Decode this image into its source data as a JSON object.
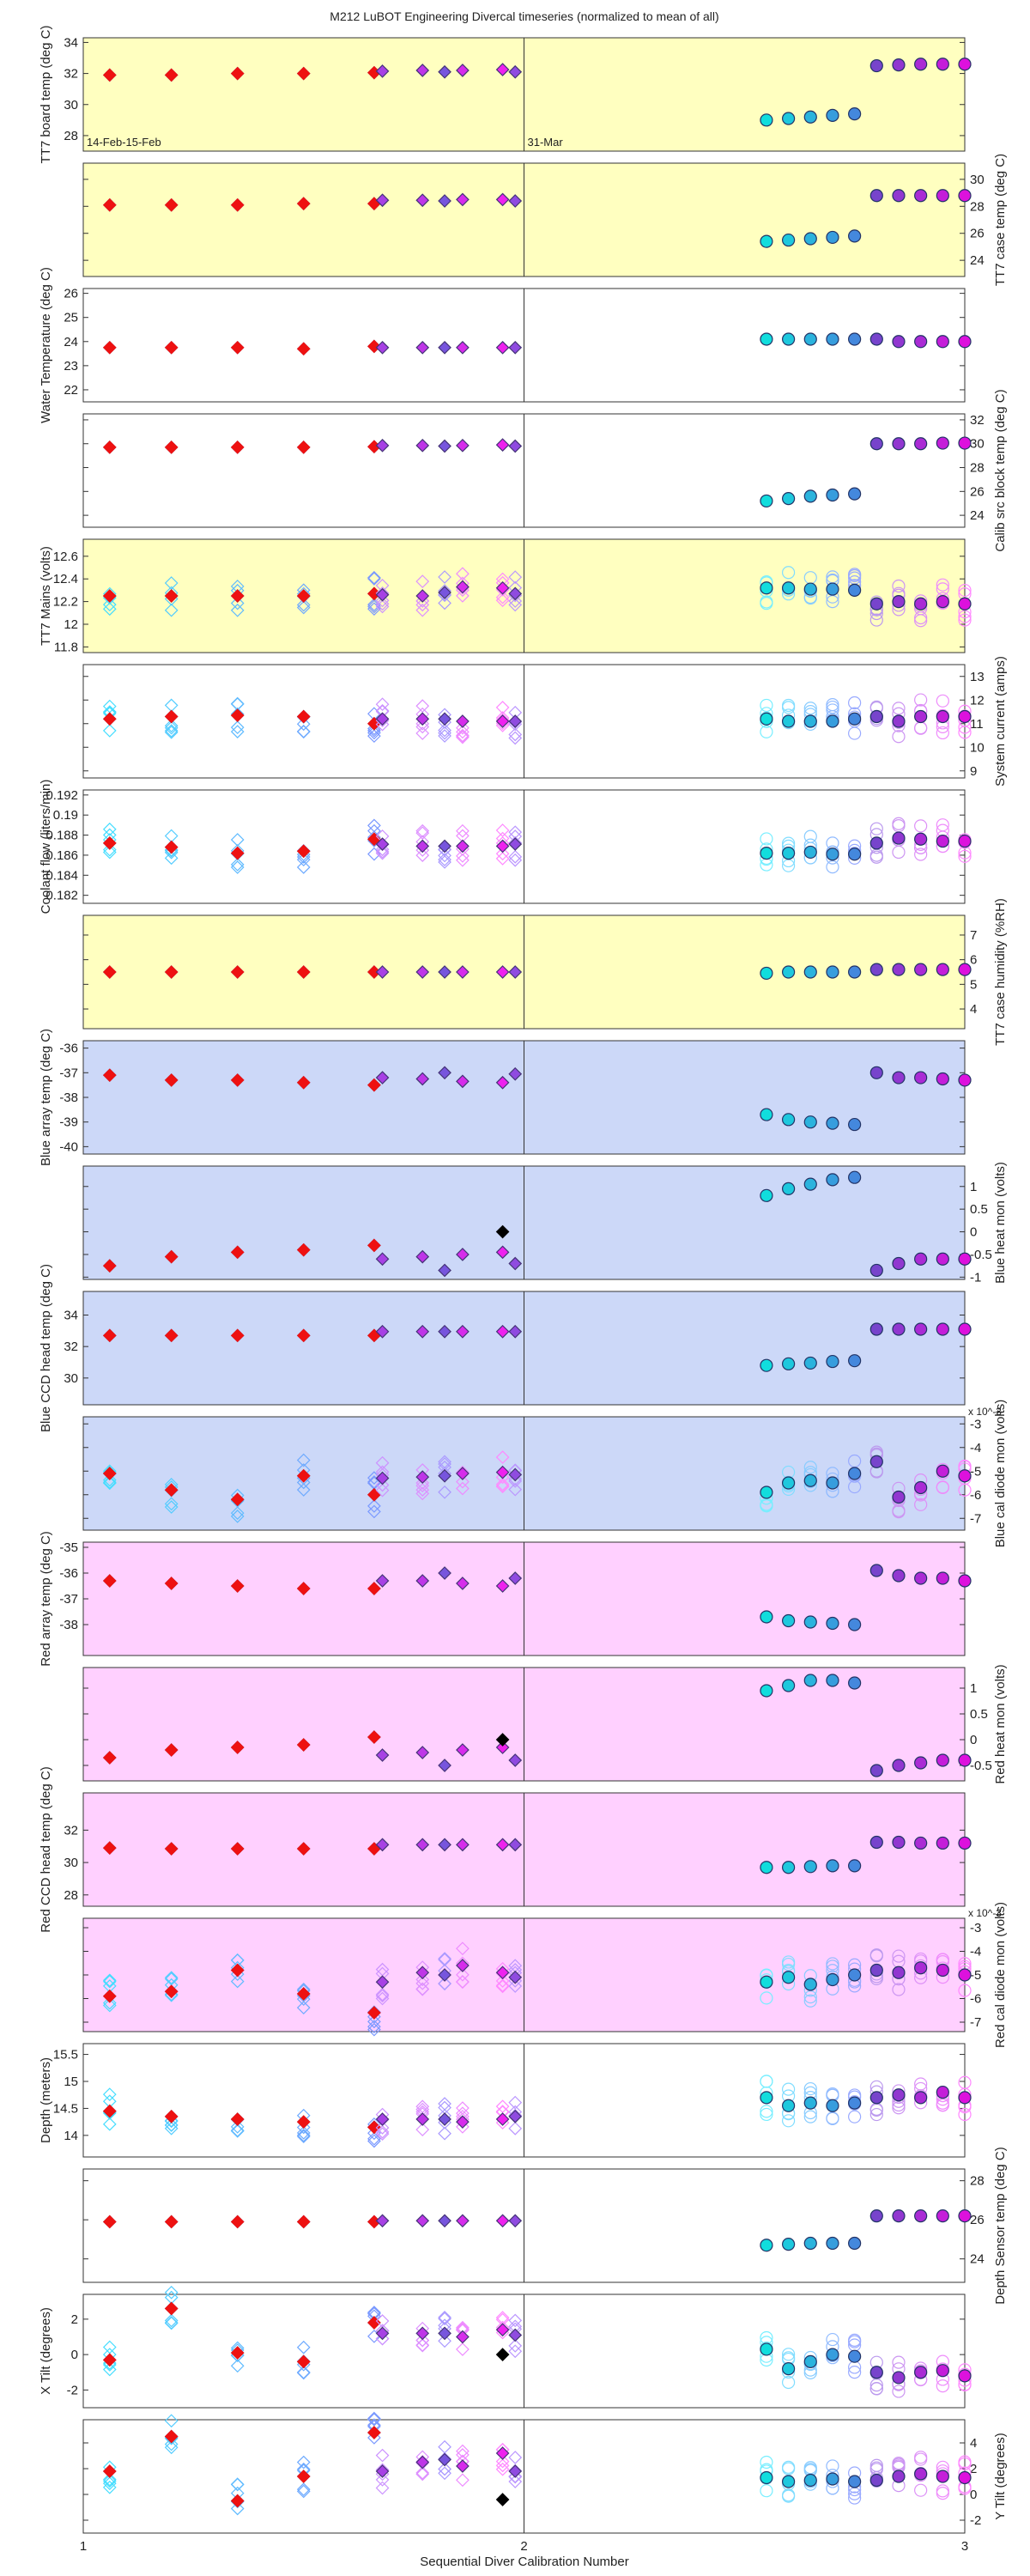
{
  "chart_data": {
    "type": "scatter",
    "title": "M212  LuBOT Engineering Divercal timeseries (normalized to mean of all)",
    "xlabel": "Sequential Diver Calibration Number",
    "xlim": [
      1,
      3
    ],
    "xticks": [
      1,
      2,
      3
    ],
    "annotations": [
      {
        "text": "14-Feb-15-Feb",
        "x": 1.0,
        "panel": 0
      },
      {
        "text": "31-Mar",
        "x": 2.0,
        "panel": 0
      }
    ],
    "x_first_group": [
      1.06,
      1.2,
      1.35,
      1.5,
      1.66,
      1.82,
      1.98,
      2.12,
      2.27,
      2.42,
      2.57
    ],
    "x_second_group": [
      3.47,
      3.58,
      3.69,
      3.8,
      3.91,
      4.02,
      4.13,
      4.24,
      4.35,
      4.46
    ],
    "panels": [
      {
        "ylabel": "TT7 board temp (deg C)",
        "axis_side": "left",
        "ylim": [
          27,
          34.3
        ],
        "yticks": [
          28,
          30,
          32,
          34
        ],
        "bg": "#ffffc0",
        "red": [
          31.9,
          31.9,
          32.0,
          32.0,
          32.05
        ],
        "first_purple": [
          32.1,
          32.1,
          32.15,
          32.2,
          32.2,
          32.25
        ],
        "second_group": [
          29.0,
          29.1,
          29.2,
          29.3,
          29.4,
          32.5,
          32.55,
          32.6,
          32.6,
          32.6
        ]
      },
      {
        "ylabel": "TT7 case temp (deg C)",
        "axis_side": "right",
        "ylim": [
          22.8,
          31.2
        ],
        "yticks": [
          24,
          26,
          28,
          30
        ],
        "bg": "#ffffc0",
        "red": [
          28.1,
          28.1,
          28.1,
          28.2,
          28.2
        ],
        "first_purple": [
          28.4,
          28.4,
          28.45,
          28.45,
          28.5,
          28.5
        ],
        "second_group": [
          25.4,
          25.5,
          25.6,
          25.7,
          25.8,
          28.8,
          28.8,
          28.8,
          28.8,
          28.8
        ]
      },
      {
        "ylabel": "Water Temperature (deg C)",
        "axis_side": "left",
        "ylim": [
          21.5,
          26.2
        ],
        "yticks": [
          22,
          23,
          24,
          25,
          26
        ],
        "bg": "#ffffff",
        "red": [
          23.75,
          23.75,
          23.75,
          23.7,
          23.8
        ],
        "first_purple": [
          23.75,
          23.75,
          23.75,
          23.75,
          23.75,
          23.75
        ],
        "second_group": [
          24.1,
          24.1,
          24.1,
          24.1,
          24.1,
          24.1,
          24.0,
          24.0,
          24.0,
          24.0
        ]
      },
      {
        "ylabel": "Calib src block temp (deg C)",
        "axis_side": "right",
        "ylim": [
          23,
          32.5
        ],
        "yticks": [
          24,
          26,
          28,
          30,
          32
        ],
        "bg": "#ffffff",
        "red": [
          29.7,
          29.7,
          29.7,
          29.7,
          29.75
        ],
        "first_purple": [
          29.8,
          29.8,
          29.85,
          29.85,
          29.85,
          29.9
        ],
        "second_group": [
          25.2,
          25.4,
          25.6,
          25.7,
          25.8,
          30.0,
          30.0,
          30.0,
          30.05,
          30.05
        ]
      },
      {
        "ylabel": "TT7 Mains (volts)",
        "axis_side": "left",
        "ylim": [
          11.75,
          12.75
        ],
        "yticks": [
          11.8,
          12,
          12.2,
          12.4,
          12.6
        ],
        "bg": "#ffffc0",
        "red": [
          12.25,
          12.25,
          12.25,
          12.25,
          12.27
        ],
        "first_purple": [
          12.28,
          12.27,
          12.26,
          12.25,
          12.33,
          12.32
        ],
        "second_group": [
          12.32,
          12.32,
          12.31,
          12.31,
          12.3,
          12.18,
          12.2,
          12.18,
          12.2,
          12.18
        ]
      },
      {
        "ylabel": "System current (amps)",
        "axis_side": "right",
        "ylim": [
          8.7,
          13.5
        ],
        "yticks": [
          9,
          10,
          11,
          12,
          13
        ],
        "bg": "#ffffff",
        "red": [
          11.2,
          11.3,
          11.35,
          11.3,
          11.0
        ],
        "first_purple": [
          11.2,
          11.1,
          11.2,
          11.2,
          11.1,
          11.1
        ],
        "second_group": [
          11.2,
          11.1,
          11.1,
          11.1,
          11.2,
          11.3,
          11.1,
          11.3,
          11.3,
          11.3
        ]
      },
      {
        "ylabel": "Coolant flow (liters/min)",
        "axis_side": "left",
        "ylim": [
          0.1812,
          0.1925
        ],
        "yticks": [
          0.182,
          0.184,
          0.186,
          0.188,
          0.19,
          0.192
        ],
        "bg": "#ffffff",
        "red": [
          0.1872,
          0.1868,
          0.1862,
          0.1864,
          0.1876
        ],
        "first_purple": [
          0.1869,
          0.1871,
          0.1871,
          0.1869,
          0.1869,
          0.1869
        ],
        "second_group": [
          0.1862,
          0.1862,
          0.1863,
          0.1861,
          0.1861,
          0.1872,
          0.1877,
          0.1876,
          0.1874,
          0.1874
        ]
      },
      {
        "ylabel": "TT7 case humidity (%RH)",
        "axis_side": "right",
        "ylim": [
          3.2,
          7.8
        ],
        "yticks": [
          4,
          5,
          6,
          7
        ],
        "bg": "#ffffc0",
        "red": [
          5.5,
          5.5,
          5.5,
          5.5,
          5.5
        ],
        "first_purple": [
          5.5,
          5.5,
          5.5,
          5.5,
          5.5,
          5.5
        ],
        "second_group": [
          5.45,
          5.5,
          5.5,
          5.5,
          5.5,
          5.6,
          5.6,
          5.6,
          5.6,
          5.6
        ]
      },
      {
        "ylabel": "Blue array temp (deg C)",
        "axis_side": "left",
        "ylim": [
          -40.3,
          -35.7
        ],
        "yticks": [
          -40,
          -39,
          -38,
          -37,
          -36
        ],
        "bg": "#ccd8f8",
        "red": [
          -37.1,
          -37.3,
          -37.3,
          -37.4,
          -37.5
        ],
        "first_purple": [
          -37.0,
          -37.05,
          -37.2,
          -37.25,
          -37.35,
          -37.4
        ],
        "second_group": [
          -38.7,
          -38.9,
          -39.0,
          -39.05,
          -39.1,
          -37.0,
          -37.2,
          -37.2,
          -37.25,
          -37.3
        ]
      },
      {
        "ylabel": "Blue heat mon (volts)",
        "axis_side": "right",
        "ylim": [
          -1.05,
          1.45
        ],
        "yticks": [
          -1,
          -0.5,
          0,
          0.5,
          1
        ],
        "bg": "#ccd8f8",
        "red": [
          -0.75,
          -0.55,
          -0.45,
          -0.4,
          -0.3
        ],
        "first_purple": [
          -0.85,
          -0.7,
          -0.6,
          -0.55,
          -0.5,
          -0.45
        ],
        "black": [
          {
            "i": 5,
            "y": 0.0
          }
        ],
        "second_group": [
          0.8,
          0.95,
          1.05,
          1.15,
          1.2,
          -0.85,
          -0.7,
          -0.6,
          -0.6,
          -0.6
        ]
      },
      {
        "ylabel": "Blue CCD head temp (deg C)",
        "axis_side": "left",
        "ylim": [
          28.3,
          35.5
        ],
        "yticks": [
          30,
          32,
          34
        ],
        "bg": "#ccd8f8",
        "red": [
          32.7,
          32.7,
          32.7,
          32.7,
          32.7
        ],
        "first_purple": [
          32.95,
          32.95,
          32.95,
          32.95,
          32.95,
          32.95
        ],
        "second_group": [
          30.8,
          30.9,
          30.95,
          31.05,
          31.1,
          33.1,
          33.1,
          33.1,
          33.1,
          33.1
        ]
      },
      {
        "ylabel": "Blue cal diode mon (volts)",
        "axis_side": "right",
        "ylim": [
          -7.5,
          -2.7
        ],
        "yticks": [
          -7,
          -6,
          -5,
          -4,
          -3
        ],
        "exponent": "x 10^-3",
        "bg": "#ccd8f8",
        "red": [
          -5.1,
          -5.8,
          -6.2,
          -5.2,
          -6.0
        ],
        "first_purple": [
          -5.2,
          -5.15,
          -5.3,
          -5.25,
          -5.1,
          -5.05
        ],
        "second_group": [
          -5.9,
          -5.5,
          -5.4,
          -5.5,
          -5.1,
          -4.6,
          -6.1,
          -5.7,
          -5.0,
          -5.2
        ]
      },
      {
        "ylabel": "Red array temp (deg C)",
        "axis_side": "left",
        "ylim": [
          -39.2,
          -34.8
        ],
        "yticks": [
          -38,
          -37,
          -36,
          -35
        ],
        "bg": "#ffd0ff",
        "red": [
          -36.3,
          -36.4,
          -36.5,
          -36.6,
          -36.6
        ],
        "first_purple": [
          -36.0,
          -36.2,
          -36.3,
          -36.3,
          -36.4,
          -36.5
        ],
        "second_group": [
          -37.7,
          -37.85,
          -37.9,
          -37.95,
          -38.0,
          -35.9,
          -36.1,
          -36.2,
          -36.2,
          -36.3
        ]
      },
      {
        "ylabel": "Red heat mon (volts)",
        "axis_side": "right",
        "ylim": [
          -0.8,
          1.4
        ],
        "yticks": [
          -0.5,
          0,
          0.5,
          1
        ],
        "bg": "#ffd0ff",
        "red": [
          -0.35,
          -0.2,
          -0.15,
          -0.1,
          0.05
        ],
        "first_purple": [
          -0.5,
          -0.4,
          -0.3,
          -0.25,
          -0.2,
          -0.15
        ],
        "black": [
          {
            "i": 5,
            "y": 0.0
          }
        ],
        "second_group": [
          0.95,
          1.05,
          1.15,
          1.15,
          1.1,
          -0.6,
          -0.5,
          -0.45,
          -0.4,
          -0.4
        ]
      },
      {
        "ylabel": "Red CCD head temp (deg C)",
        "axis_side": "left",
        "ylim": [
          27.3,
          34.3
        ],
        "yticks": [
          28,
          30,
          32
        ],
        "bg": "#ffd0ff",
        "red": [
          30.9,
          30.85,
          30.85,
          30.85,
          30.85
        ],
        "first_purple": [
          31.1,
          31.1,
          31.1,
          31.1,
          31.1,
          31.1
        ],
        "second_group": [
          29.7,
          29.7,
          29.75,
          29.8,
          29.8,
          31.25,
          31.25,
          31.2,
          31.2,
          31.2
        ]
      },
      {
        "ylabel": "Red cal diode mon (volts)",
        "axis_side": "right",
        "ylim": [
          -7.4,
          -2.6
        ],
        "yticks": [
          -7,
          -6,
          -5,
          -4,
          -3
        ],
        "exponent": "x 10^-3",
        "bg": "#ffd0ff",
        "red": [
          -5.9,
          -5.7,
          -4.8,
          -5.8,
          -6.6
        ],
        "first_purple": [
          -5.0,
          -5.1,
          -5.3,
          -4.9,
          -4.6,
          -4.9
        ],
        "second_group": [
          -5.3,
          -5.1,
          -5.4,
          -5.2,
          -5.0,
          -4.8,
          -4.9,
          -4.7,
          -4.8,
          -5.0
        ]
      },
      {
        "ylabel": "Depth  (meters)",
        "axis_side": "left",
        "ylim": [
          13.6,
          15.7
        ],
        "yticks": [
          14,
          14.5,
          15,
          15.5
        ],
        "bg": "#ffffff",
        "red": [
          14.45,
          14.35,
          14.3,
          14.25,
          14.15
        ],
        "first_purple": [
          14.3,
          14.35,
          14.3,
          14.3,
          14.25,
          14.3
        ],
        "second_group": [
          14.7,
          14.55,
          14.6,
          14.55,
          14.6,
          14.7,
          14.75,
          14.7,
          14.8,
          14.7
        ]
      },
      {
        "ylabel": "Depth Sensor temp (deg C)",
        "axis_side": "right",
        "ylim": [
          22.8,
          28.6
        ],
        "yticks": [
          24,
          26,
          28
        ],
        "bg": "#ffffff",
        "red": [
          25.9,
          25.9,
          25.9,
          25.9,
          25.9
        ],
        "first_purple": [
          25.95,
          25.95,
          25.95,
          25.95,
          25.95,
          25.95
        ],
        "second_group": [
          24.7,
          24.75,
          24.8,
          24.8,
          24.8,
          26.2,
          26.2,
          26.2,
          26.2,
          26.2
        ]
      },
      {
        "ylabel": "X Tilt  (degrees)",
        "axis_side": "left",
        "ylim": [
          -3.0,
          3.4
        ],
        "yticks": [
          -2,
          0,
          2
        ],
        "bg": "#ffffff",
        "red": [
          -0.3,
          2.6,
          0.1,
          -0.4,
          1.8
        ],
        "first_purple": [
          1.2,
          1.1,
          1.2,
          1.2,
          1.0,
          1.4
        ],
        "black": [
          {
            "i": 5,
            "y": 0.0
          }
        ],
        "second_group": [
          0.3,
          -0.8,
          -0.4,
          0.0,
          -0.1,
          -1.0,
          -1.3,
          -1.0,
          -0.9,
          -1.2
        ]
      },
      {
        "ylabel": "Y Tilt  (degrees)",
        "axis_side": "right",
        "ylim": [
          -3.0,
          5.8
        ],
        "yticks": [
          -2,
          0,
          2,
          4
        ],
        "bg": "#ffffff",
        "red": [
          1.8,
          4.5,
          -0.5,
          1.4,
          4.8
        ],
        "first_purple": [
          2.7,
          1.8,
          1.8,
          2.5,
          2.2,
          3.2
        ],
        "black": [
          {
            "i": 5,
            "y": -0.4
          }
        ],
        "second_group": [
          1.3,
          1.0,
          1.1,
          1.2,
          1.0,
          1.1,
          1.4,
          1.6,
          1.4,
          1.3
        ]
      }
    ]
  }
}
